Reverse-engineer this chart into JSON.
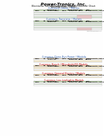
{
  "bg_color": "#f0f0f0",
  "white": "#ffffff",
  "title_color": "#000000",
  "green_header": "#4e9a4e",
  "green_header_light": "#c6e0b4",
  "orange_header": "#f4b942",
  "orange_header_light": "#fce4b6",
  "pink_row": "#f4cccc",
  "green_row": "#d9ead3",
  "section_title_green": "#4caf50",
  "section_title_orange": "#ff9900",
  "section_title_red": "#cc0000",
  "section_title_blue": "#3366cc",
  "section_title_purple": "#9900cc",
  "gray_border": "#aaaaaa"
}
